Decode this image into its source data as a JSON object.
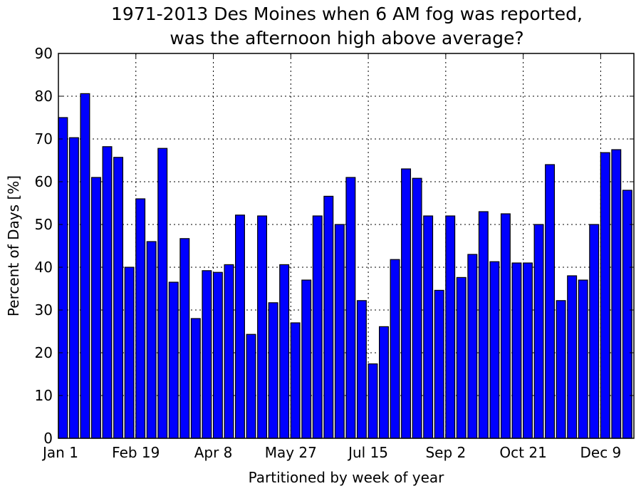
{
  "chart_data": {
    "type": "bar",
    "title_line1": "1971-2013 Des Moines when 6 AM fog was reported,",
    "title_line2": "was the afternoon high above average?",
    "xlabel": "Partitioned by week of year",
    "ylabel": "Percent of Days [%]",
    "ylim": [
      0,
      90
    ],
    "yticks": [
      0,
      10,
      20,
      30,
      40,
      50,
      60,
      70,
      80,
      90
    ],
    "xticks": [
      {
        "label": "Jan 1",
        "week": 0
      },
      {
        "label": "Feb 19",
        "week": 7
      },
      {
        "label": "Apr 8",
        "week": 14
      },
      {
        "label": "May 27",
        "week": 21
      },
      {
        "label": "Jul 15",
        "week": 28
      },
      {
        "label": "Sep 2",
        "week": 35
      },
      {
        "label": "Oct 21",
        "week": 42
      },
      {
        "label": "Dec 9",
        "week": 49
      }
    ],
    "grid": true,
    "bar_color": "#0000ff",
    "values": [
      75,
      70.3,
      80.6,
      61,
      68.2,
      65.7,
      40,
      56,
      46,
      67.8,
      36.5,
      46.7,
      28,
      39.2,
      38.8,
      40.6,
      52.2,
      24.3,
      52,
      31.7,
      40.6,
      27,
      37,
      52,
      56.6,
      50,
      61,
      32.2,
      17.4,
      26.1,
      41.8,
      63,
      60.8,
      52,
      34.6,
      52,
      37.6,
      43,
      53,
      41.3,
      52.5,
      41,
      41,
      50,
      64,
      32.2,
      38,
      37,
      50,
      66.8,
      67.5,
      58
    ]
  }
}
